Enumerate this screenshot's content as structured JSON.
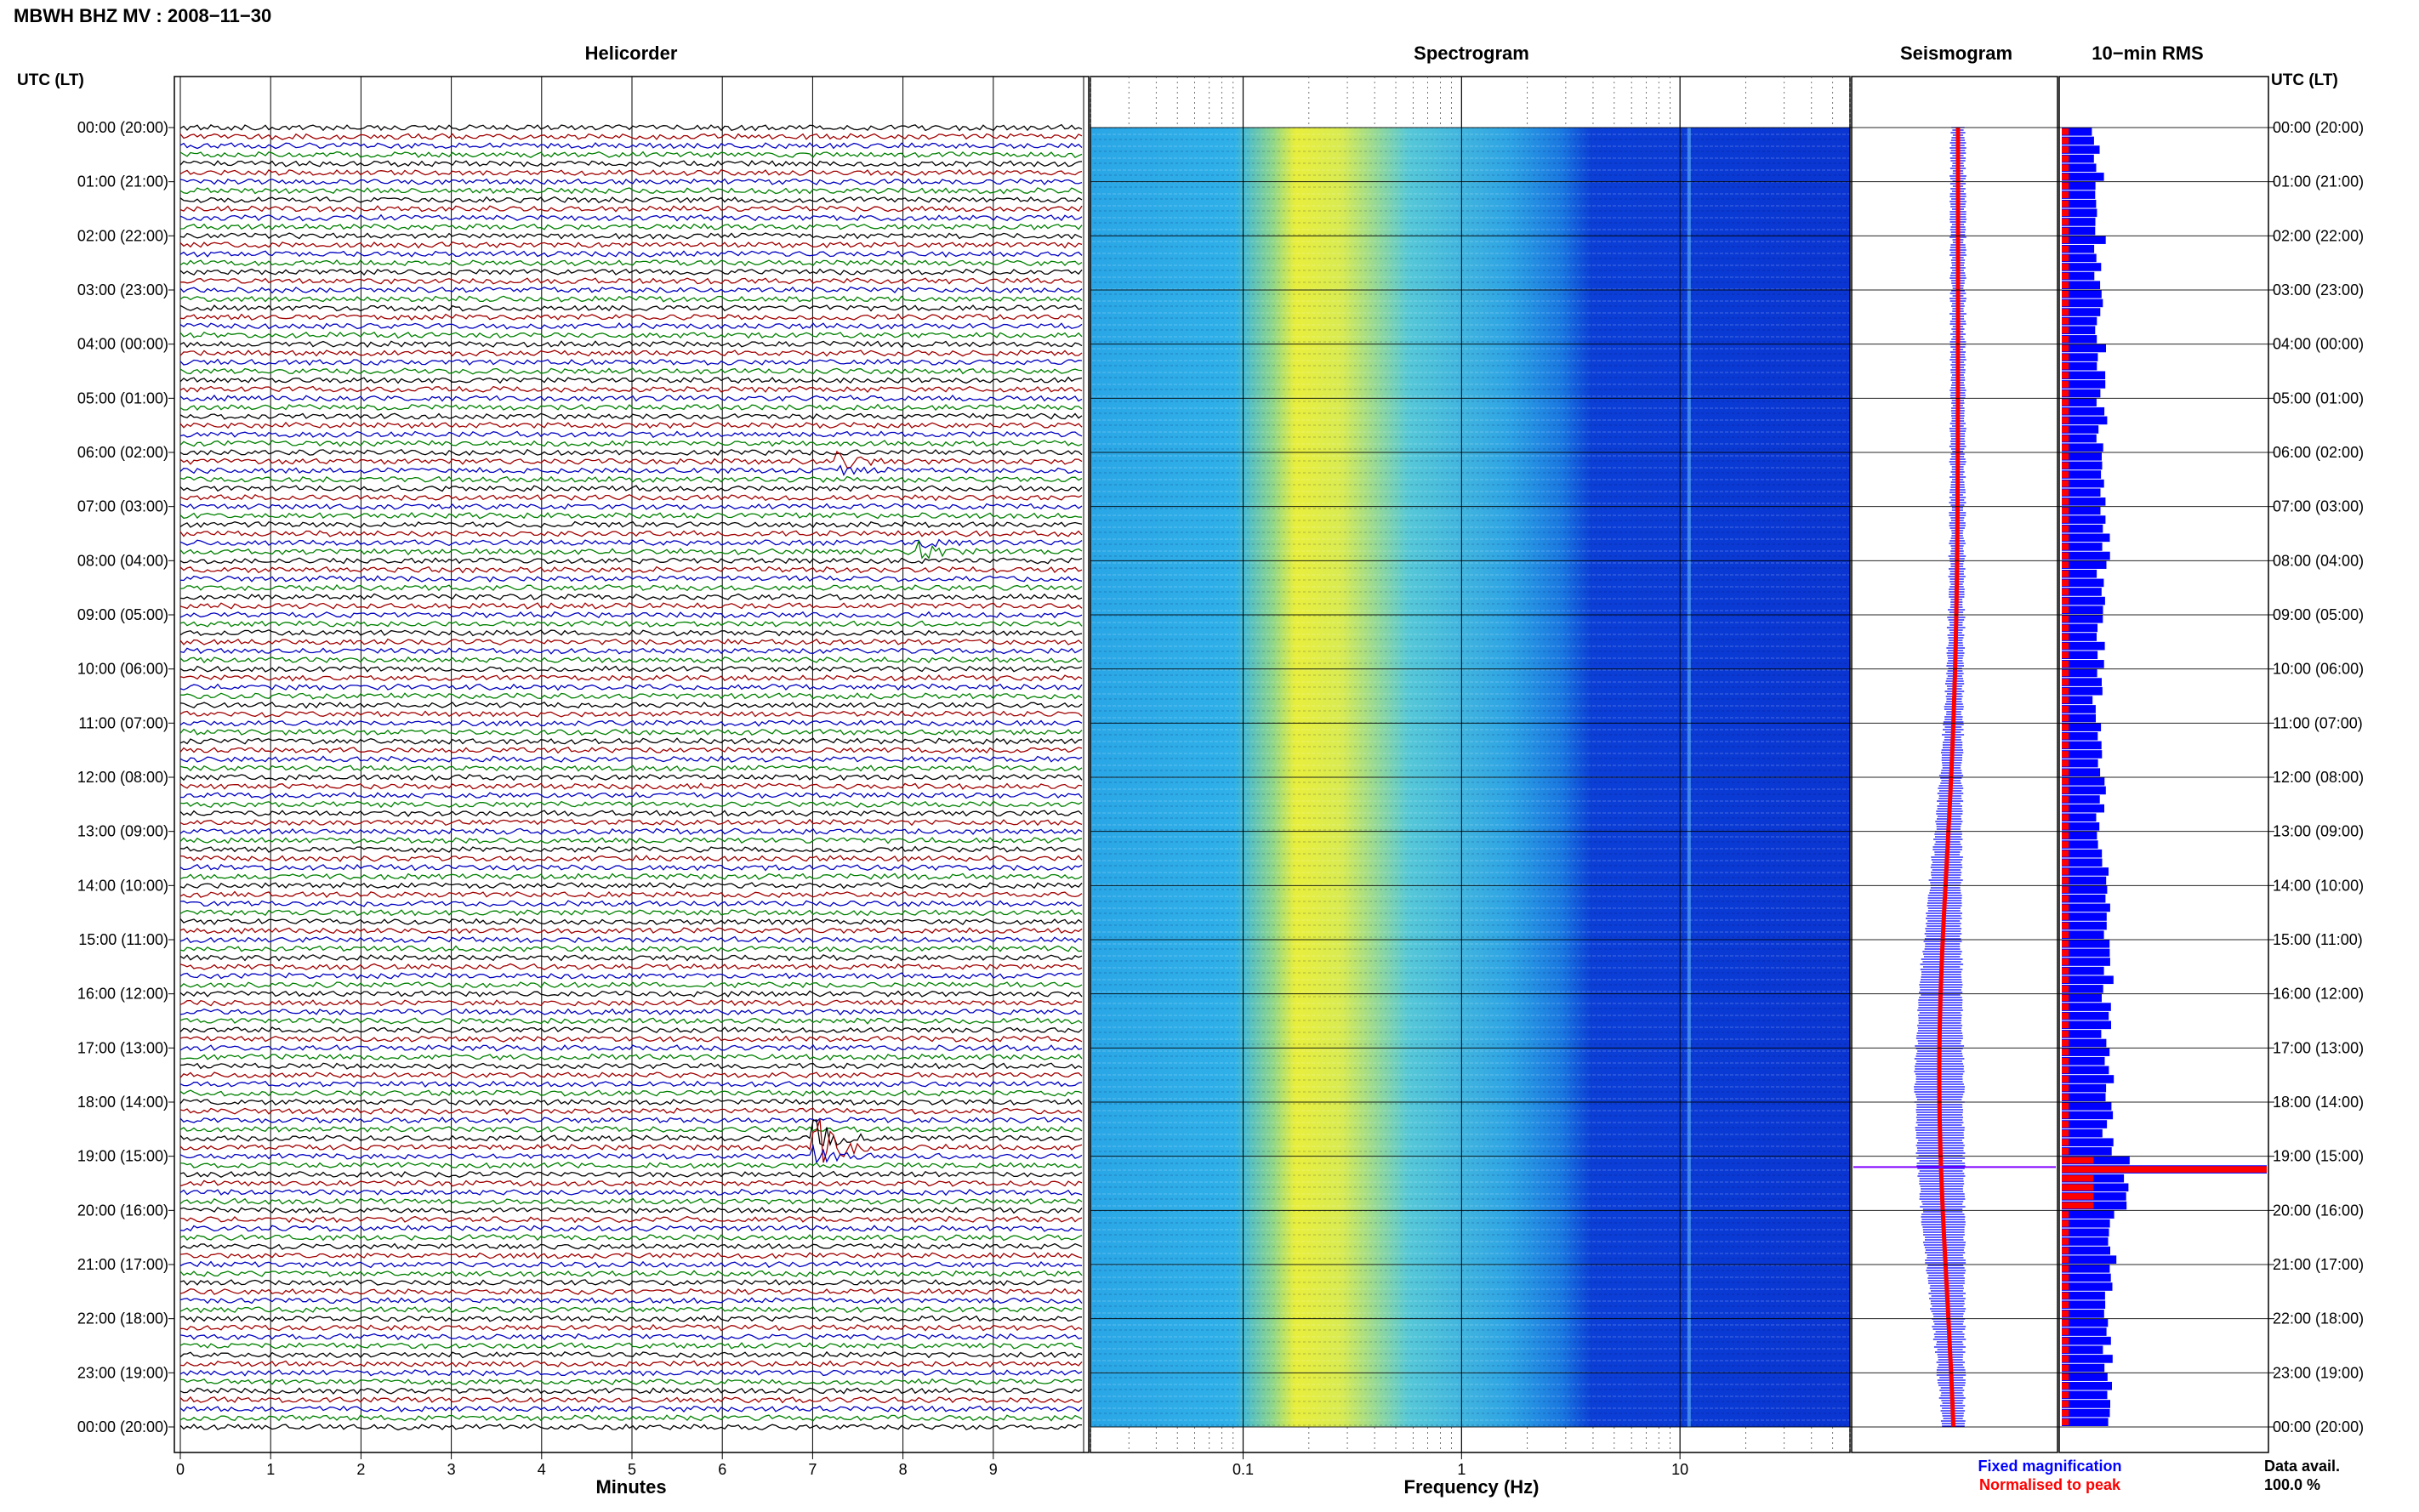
{
  "header": {
    "title": "MBWH BHZ MV : 2008−11−30"
  },
  "panels": {
    "helicorder": "Helicorder",
    "spectrogram": "Spectrogram",
    "seismogram": "Seismogram",
    "rms": "10−min RMS"
  },
  "axis": {
    "time_header_left": "UTC (LT)",
    "time_header_right": "UTC (LT)",
    "minutes_label": "Minutes",
    "frequency_label": "Frequency (Hz)",
    "minute_ticks": [
      "0",
      "1",
      "2",
      "3",
      "4",
      "5",
      "6",
      "7",
      "8",
      "9"
    ],
    "frequency_ticks": [
      "0.1",
      "1",
      "10"
    ],
    "time_labels": [
      "00:00 (20:00)",
      "01:00 (21:00)",
      "02:00 (22:00)",
      "03:00 (23:00)",
      "04:00 (00:00)",
      "05:00 (01:00)",
      "06:00 (02:00)",
      "07:00 (03:00)",
      "08:00 (04:00)",
      "09:00 (05:00)",
      "10:00 (06:00)",
      "11:00 (07:00)",
      "12:00 (08:00)",
      "13:00 (09:00)",
      "14:00 (10:00)",
      "15:00 (11:00)",
      "16:00 (12:00)",
      "17:00 (13:00)",
      "18:00 (14:00)",
      "19:00 (15:00)",
      "20:00 (16:00)",
      "21:00 (17:00)",
      "22:00 (18:00)",
      "23:00 (19:00)",
      "00:00 (20:00)"
    ]
  },
  "legend": {
    "fixed": "Fixed magnification",
    "normalised": "Normalised to peak",
    "fixed_color": "#0000ff",
    "normalised_color": "#ff0000"
  },
  "footer": {
    "data_avail_label": "Data avail.",
    "data_avail_value": "100.0 %"
  },
  "colors": {
    "trace_cycle": [
      "#000000",
      "#a00000",
      "#0000c0",
      "#008000"
    ]
  },
  "chart_data": {
    "type": "heatmap",
    "helicorder": {
      "x_unit": "minutes",
      "xlim": [
        0,
        10
      ],
      "lines_per_hour": 6,
      "hours": 24,
      "events": [
        {
          "hour": 18.8,
          "minute": 7.05,
          "amplitude": "large"
        },
        {
          "hour": 6.2,
          "minute": 7.3,
          "amplitude": "small"
        },
        {
          "hour": 7.8,
          "minute": 8.2,
          "amplitude": "small"
        }
      ]
    },
    "spectrogram": {
      "x_scale": "log",
      "xlim": [
        0.02,
        60
      ],
      "spectral_line_hz": 11
    },
    "rms": {
      "fixed_values": [
        0.55,
        0.52,
        0.58,
        0.6,
        0.62,
        0.6,
        0.63,
        0.65,
        0.6,
        0.58,
        0.55,
        0.57,
        0.6,
        0.62,
        0.66,
        0.7,
        0.68,
        0.72,
        0.7,
        1.0,
        0.74,
        0.72,
        0.7,
        0.75
      ],
      "normalised_values": [
        0.22,
        0.22,
        0.22,
        0.22,
        0.22,
        0.22,
        0.22,
        0.22,
        0.22,
        0.22,
        0.22,
        0.22,
        0.22,
        0.22,
        0.22,
        0.22,
        0.22,
        0.22,
        0.22,
        1.0,
        0.22,
        0.22,
        0.22,
        0.22
      ]
    }
  }
}
